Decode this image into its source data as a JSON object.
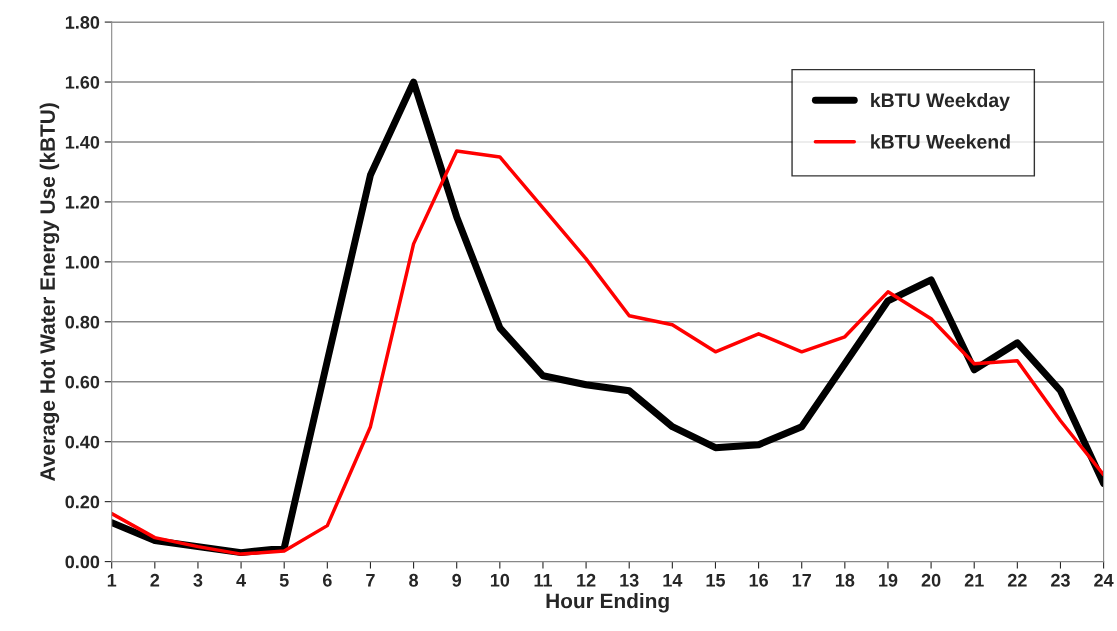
{
  "chart_data": {
    "type": "line",
    "xlabel": "Hour Ending",
    "ylabel": "Average Hot Water Energy Use (kBTU)",
    "x": [
      1,
      2,
      3,
      4,
      5,
      6,
      7,
      8,
      9,
      10,
      11,
      12,
      13,
      14,
      15,
      16,
      17,
      18,
      19,
      20,
      21,
      22,
      23,
      24
    ],
    "series": [
      {
        "name": "kBTU Weekday",
        "color": "#000000",
        "values": [
          0.13,
          0.07,
          0.05,
          0.03,
          0.045,
          0.67,
          1.29,
          1.6,
          1.15,
          0.78,
          0.62,
          0.59,
          0.57,
          0.45,
          0.38,
          0.39,
          0.45,
          0.66,
          0.87,
          0.94,
          0.64,
          0.73,
          0.57,
          0.26
        ]
      },
      {
        "name": "kBTU Weekend",
        "color": "#ff0000",
        "values": [
          0.16,
          0.08,
          0.05,
          0.025,
          0.035,
          0.12,
          0.45,
          1.06,
          1.37,
          1.35,
          1.18,
          1.01,
          0.82,
          0.79,
          0.7,
          0.76,
          0.7,
          0.75,
          0.9,
          0.81,
          0.66,
          0.67,
          0.47,
          0.29
        ]
      }
    ],
    "xlim": [
      1,
      24
    ],
    "xticks": [
      1,
      2,
      3,
      4,
      5,
      6,
      7,
      8,
      9,
      10,
      11,
      12,
      13,
      14,
      15,
      16,
      17,
      18,
      19,
      20,
      21,
      22,
      23,
      24
    ],
    "ylim": [
      0,
      1.8
    ],
    "yticks": [
      {
        "value": 0,
        "label": "0.00"
      },
      {
        "value": 0.2,
        "label": "0.20"
      },
      {
        "value": 0.4,
        "label": "0.40"
      },
      {
        "value": 0.6,
        "label": "0.60"
      },
      {
        "value": 0.8,
        "label": "0.80"
      },
      {
        "value": 1.0,
        "label": "1.00"
      },
      {
        "value": 1.2,
        "label": "1.20"
      },
      {
        "value": 1.4,
        "label": "1.40"
      },
      {
        "value": 1.6,
        "label": "1.60"
      },
      {
        "value": 1.8,
        "label": "1.80"
      }
    ],
    "grid": "y",
    "legend": "top right",
    "marker": "none",
    "line_style": "solid"
  }
}
